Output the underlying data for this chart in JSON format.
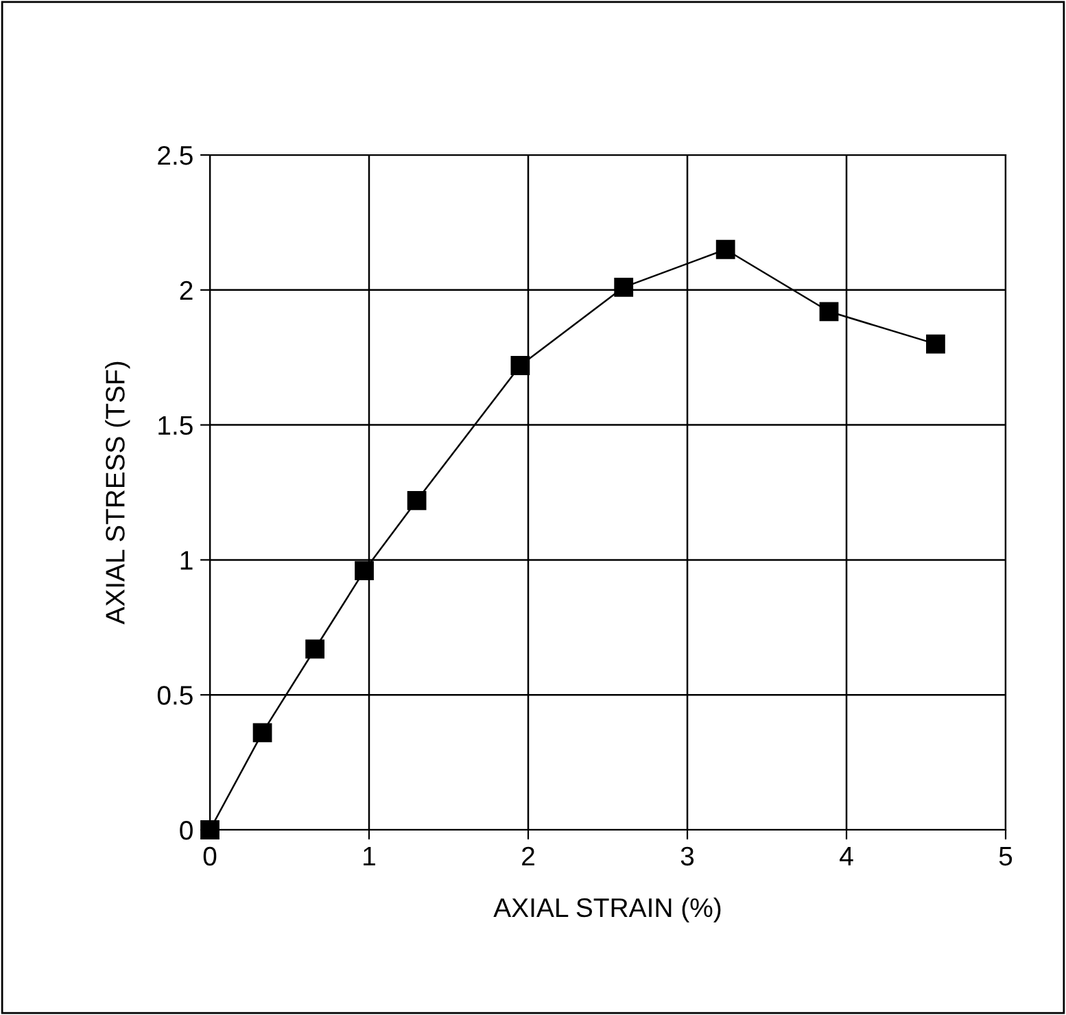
{
  "chart_data": {
    "type": "line",
    "xlabel": "AXIAL STRAIN (%)",
    "ylabel": "AXIAL STRESS (TSF)",
    "x": [
      0,
      0.33,
      0.66,
      0.97,
      1.3,
      1.95,
      2.6,
      3.24,
      3.89,
      4.56
    ],
    "series": [
      {
        "color": "#000000",
        "values": [
          0,
          0.36,
          0.67,
          0.96,
          1.22,
          1.72,
          2.01,
          2.15,
          1.92,
          1.8
        ]
      }
    ],
    "xlim": [
      0,
      5
    ],
    "ylim": [
      0,
      2.5
    ],
    "xticks": [
      0,
      1,
      2,
      3,
      4,
      5
    ],
    "yticks": [
      0,
      0.5,
      1,
      1.5,
      2,
      2.5
    ],
    "grid": true,
    "marker": "square",
    "line_style": "solid",
    "legend": false
  }
}
